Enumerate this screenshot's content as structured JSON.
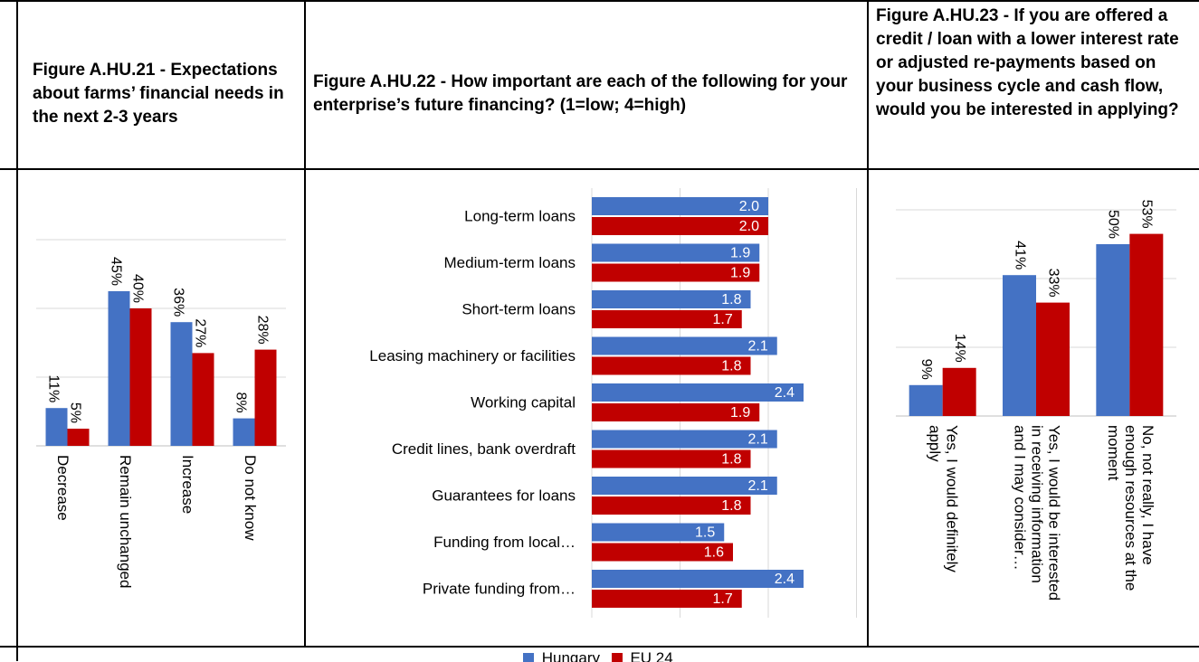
{
  "colors": {
    "hungary": "#4472C4",
    "eu24": "#C00000",
    "grid": "#D9D9D9"
  },
  "titles": {
    "fig21": "Figure A.HU.21 - Expectations about farms’ financial needs in the next 2-3 years",
    "fig22": "Figure A.HU.22 - How important are each of the following for your enterprise’s future financing? (1=low; 4=high)",
    "fig23": "Figure A.HU.23 - If you are offered a credit / loan with a lower interest rate or adjusted re-payments based on your business cycle and cash flow, would you be interested in applying?"
  },
  "legend": {
    "hungary": "Hungary",
    "eu24": "EU 24"
  },
  "chart_data": [
    {
      "type": "bar",
      "orientation": "vertical",
      "categories": [
        "Decrease",
        "Remain unchanged",
        "Increase",
        "Do not know"
      ],
      "series": [
        {
          "name": "Hungary",
          "values": [
            11,
            45,
            36,
            8
          ],
          "labels": [
            "11%",
            "45%",
            "36%",
            "8%"
          ]
        },
        {
          "name": "EU 24",
          "values": [
            5,
            40,
            27,
            28
          ],
          "labels": [
            "5%",
            "40%",
            "27%",
            "28%"
          ]
        }
      ],
      "unit": "%",
      "ylim": [
        0,
        60
      ],
      "grid": true
    },
    {
      "type": "bar",
      "orientation": "horizontal",
      "categories": [
        "Long-term loans",
        "Medium-term loans",
        "Short-term loans",
        "Leasing machinery or facilities",
        "Working capital",
        "Credit lines, bank overdraft",
        "Guarantees for loans",
        "Funding from local…",
        "Private funding from…"
      ],
      "series": [
        {
          "name": "Hungary",
          "values": [
            2.0,
            1.9,
            1.8,
            2.1,
            2.4,
            2.1,
            2.1,
            1.5,
            2.4
          ],
          "labels": [
            "2.0",
            "1.9",
            "1.8",
            "2.1",
            "2.4",
            "2.1",
            "2.1",
            "1.5",
            "2.4"
          ]
        },
        {
          "name": "EU 24",
          "values": [
            2.0,
            1.9,
            1.7,
            1.8,
            1.9,
            1.8,
            1.8,
            1.6,
            1.7
          ],
          "labels": [
            "2.0",
            "1.9",
            "1.7",
            "1.8",
            "1.9",
            "1.8",
            "1.8",
            "1.6",
            "1.7"
          ]
        }
      ],
      "xlim": [
        0,
        3
      ],
      "grid": true
    },
    {
      "type": "bar",
      "orientation": "vertical",
      "categories": [
        "Yes, I would definitely apply",
        "Yes, I would be interested in receiving information and I may consider…",
        "No, not really, I have enough resources at the moment"
      ],
      "category_lines": [
        [
          "Yes, I would definitely",
          "apply"
        ],
        [
          "Yes, I would be interested",
          "in receiving information",
          "and I may consider…"
        ],
        [
          "No, not really, I have",
          "enough resources at the",
          "moment"
        ]
      ],
      "series": [
        {
          "name": "Hungary",
          "values": [
            9,
            41,
            50
          ],
          "labels": [
            "9%",
            "41%",
            "50%"
          ]
        },
        {
          "name": "EU 24",
          "values": [
            14,
            33,
            53
          ],
          "labels": [
            "14%",
            "33%",
            "53%"
          ]
        }
      ],
      "unit": "%",
      "ylim": [
        0,
        60
      ],
      "grid": true
    }
  ]
}
